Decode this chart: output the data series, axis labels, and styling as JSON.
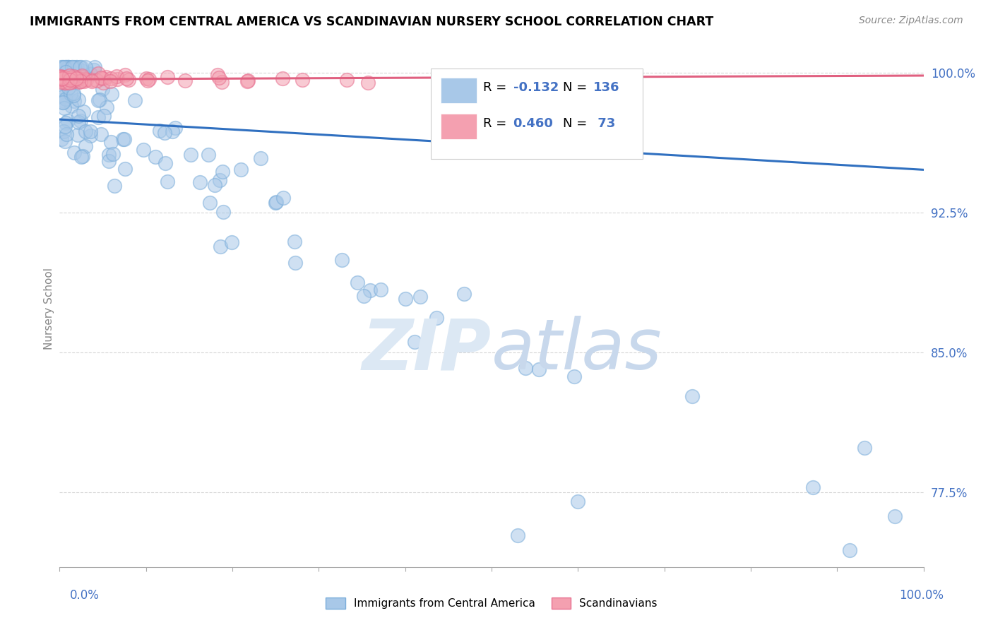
{
  "title": "IMMIGRANTS FROM CENTRAL AMERICA VS SCANDINAVIAN NURSERY SCHOOL CORRELATION CHART",
  "source": "Source: ZipAtlas.com",
  "ylabel": "Nursery School",
  "ytick_labels": [
    "100.0%",
    "92.5%",
    "85.0%",
    "77.5%"
  ],
  "ytick_values": [
    1.0,
    0.925,
    0.85,
    0.775
  ],
  "ylim": [
    0.735,
    1.012
  ],
  "xlim": [
    0.0,
    1.0
  ],
  "blue_R": -0.132,
  "blue_N": 136,
  "pink_R": 0.46,
  "pink_N": 73,
  "blue_color": "#a8c8e8",
  "pink_color": "#f4a0b0",
  "blue_edge_color": "#7aadda",
  "pink_edge_color": "#e87090",
  "blue_line_color": "#3070c0",
  "pink_line_color": "#e06080",
  "watermark_color": "#dce8f4",
  "legend_blue_label": "Immigrants from Central America",
  "legend_pink_label": "Scandinavians",
  "blue_line_x0": 0.0,
  "blue_line_y0": 0.975,
  "blue_line_x1": 1.0,
  "blue_line_y1": 0.948,
  "pink_line_x0": 0.0,
  "pink_line_y0": 0.9965,
  "pink_line_x1": 1.0,
  "pink_line_y1": 0.9985,
  "dashed_line_y": 0.9965
}
